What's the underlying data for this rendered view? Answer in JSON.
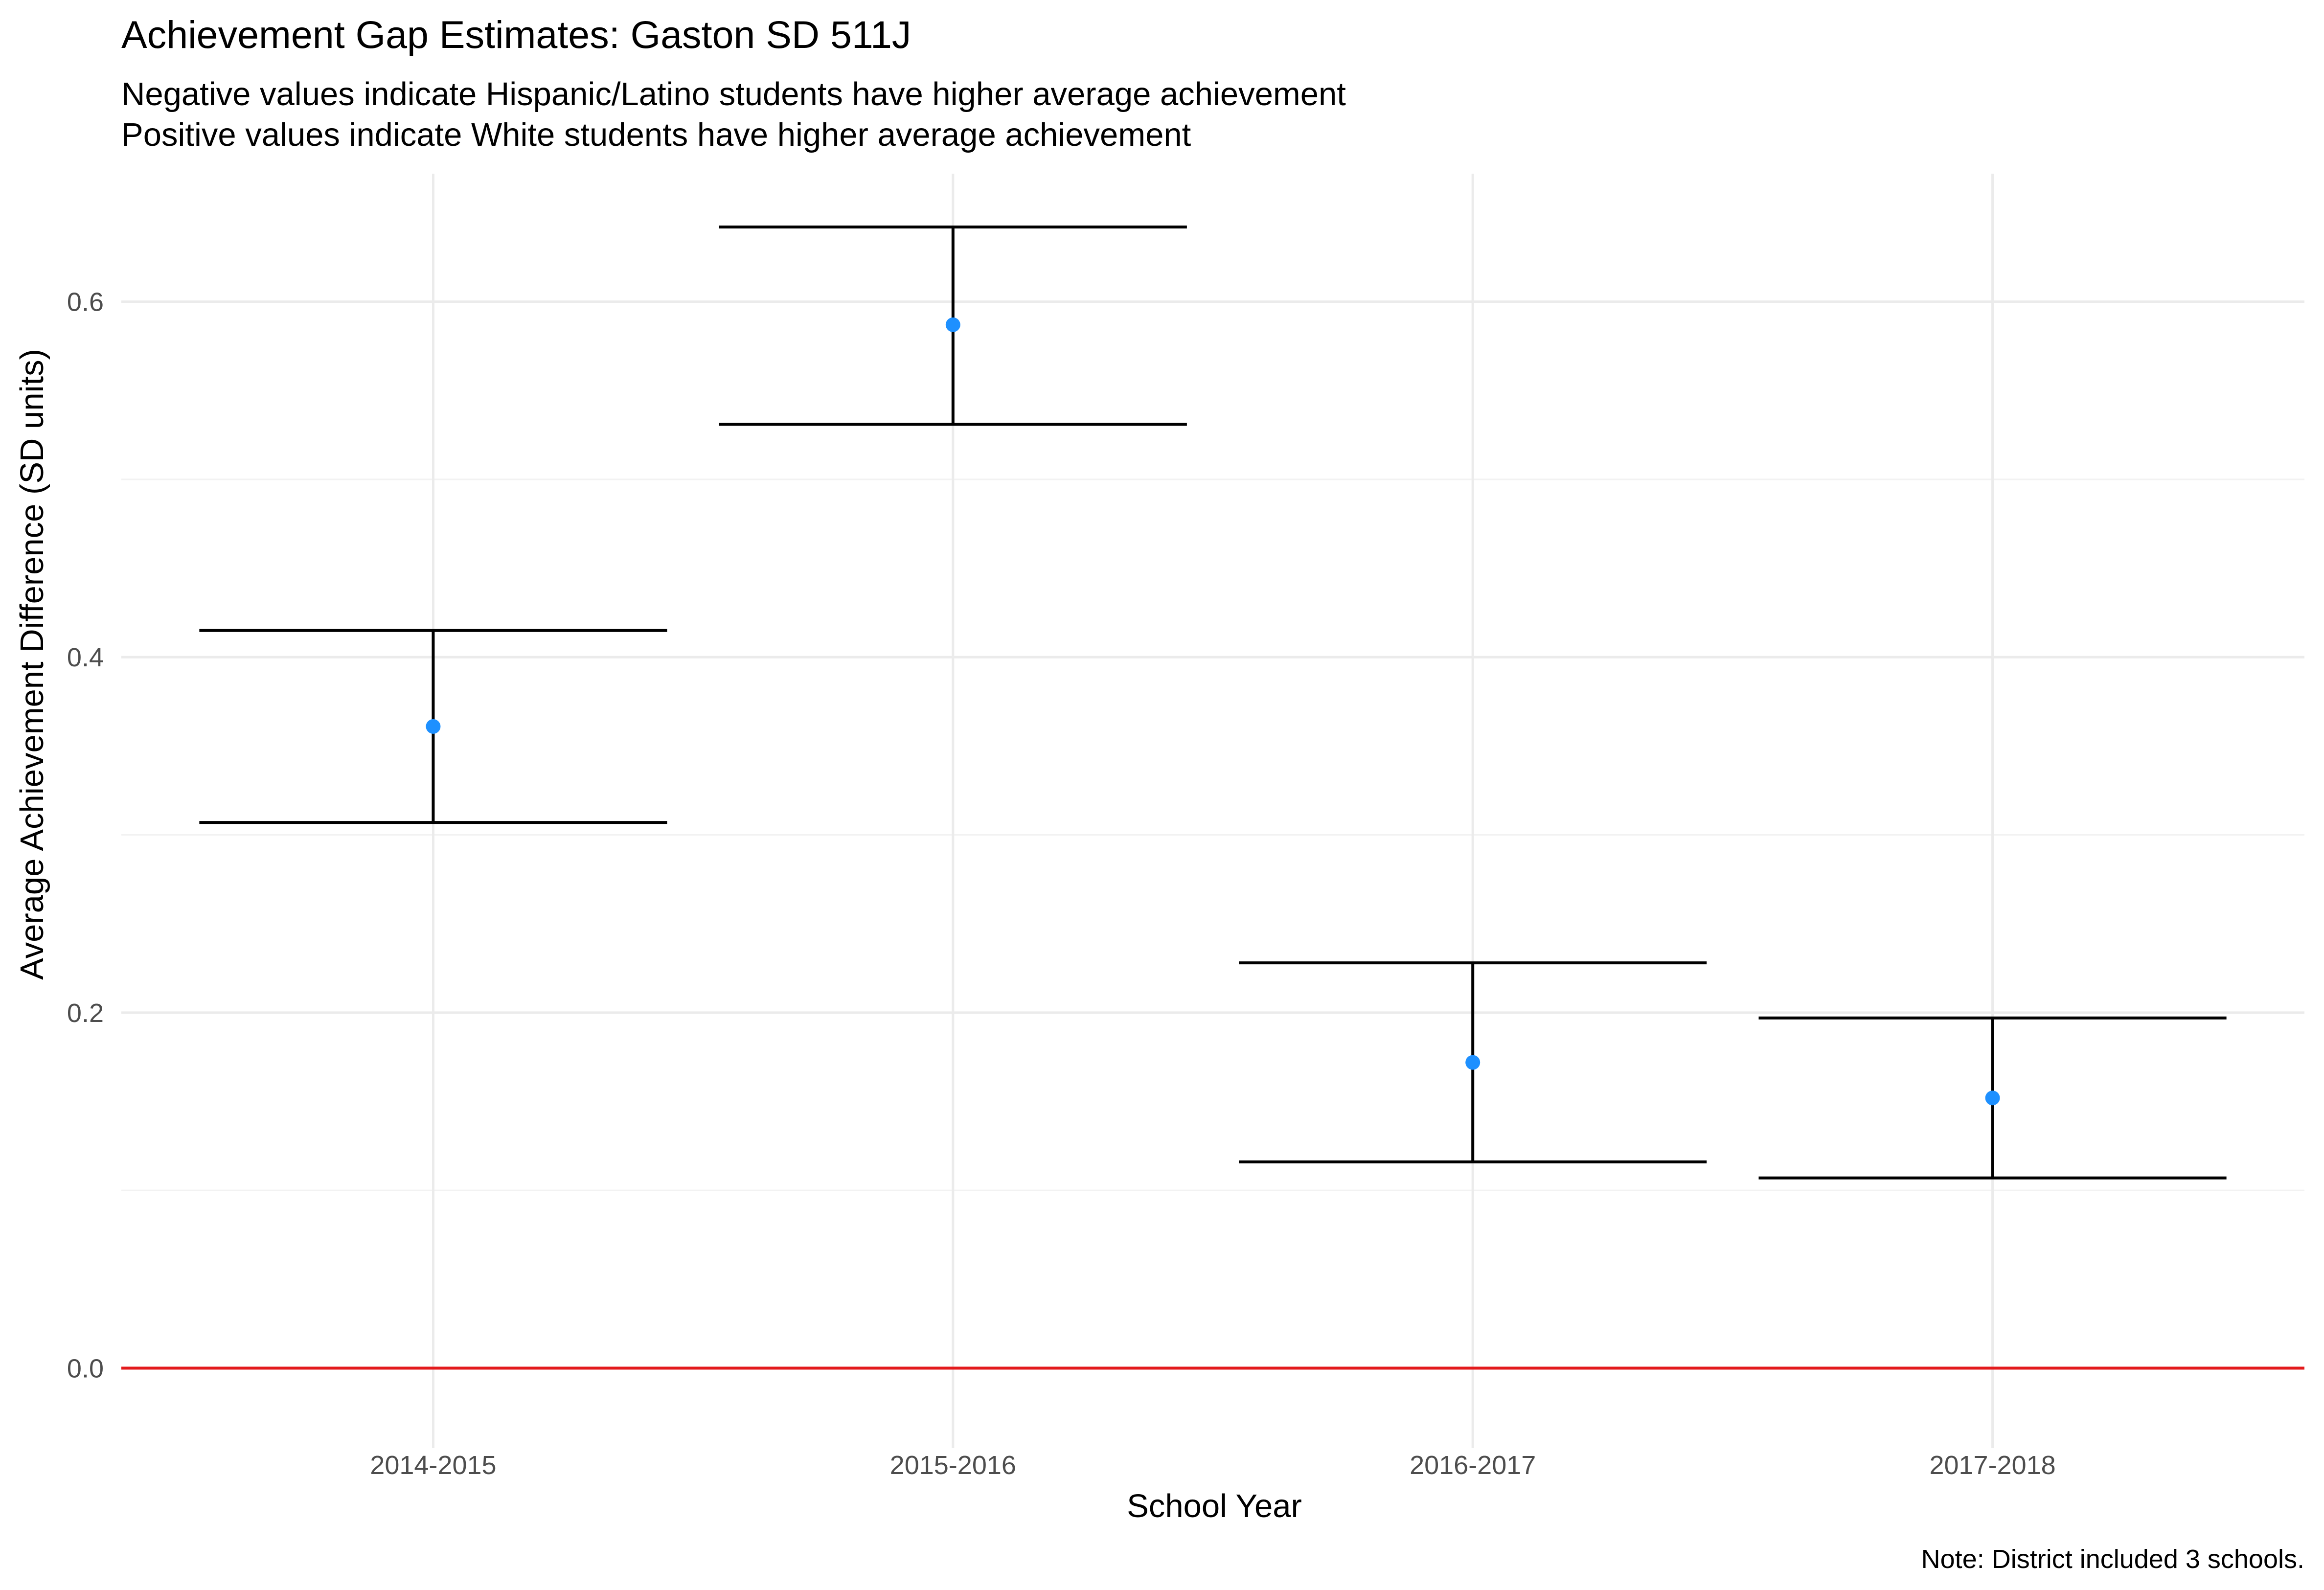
{
  "chart_data": {
    "type": "scatter",
    "title": "Achievement Gap Estimates: Gaston SD 511J",
    "subtitle": [
      "Negative values indicate Hispanic/Latino students have higher average achievement",
      "Positive values indicate White students have higher average achievement"
    ],
    "xlabel": "School Year",
    "ylabel": "Average Achievement Difference (SD units)",
    "caption": "Note: District included 3 schools.",
    "categories": [
      "2014-2015",
      "2015-2016",
      "2016-2017",
      "2017-2018"
    ],
    "series": [
      {
        "estimates": [
          0.361,
          0.587,
          0.172,
          0.152
        ],
        "lower": [
          0.307,
          0.531,
          0.116,
          0.107
        ],
        "upper": [
          0.415,
          0.642,
          0.228,
          0.197
        ],
        "point_color": "#1e90ff",
        "errorbar_color": "#000000"
      }
    ],
    "reference_line": {
      "y": 0.0,
      "color": "#e31a1c"
    },
    "ylim": [
      -0.045,
      0.672
    ],
    "yticks": [
      0.0,
      0.2,
      0.4,
      0.6
    ],
    "ytick_labels": [
      "0.0",
      "0.2",
      "0.4",
      "0.6"
    ],
    "grid": true,
    "legend": "none"
  }
}
